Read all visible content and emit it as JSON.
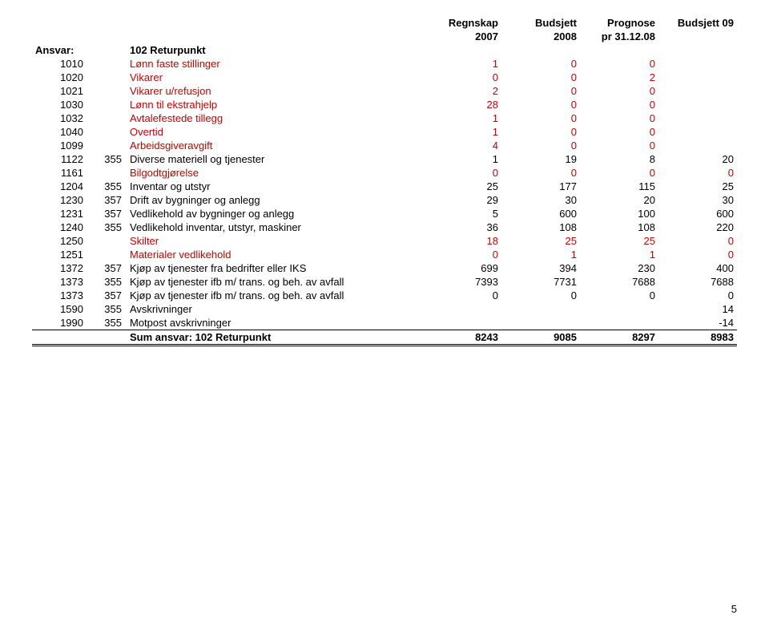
{
  "headers": {
    "regnskap_l1": "Regnskap",
    "regnskap_l2": "2007",
    "budsjett_l1": "Budsjett",
    "budsjett_l2": "2008",
    "prognose_l1": "Prognose",
    "prognose_l2": "pr 31.12.08",
    "budsjett09": "Budsjett 09"
  },
  "ansvar_label": "Ansvar:",
  "ansvar_value": "102 Returpunkt",
  "rows": [
    {
      "code": "1010",
      "sub": "",
      "desc": "Lønn faste stillinger",
      "r": "1",
      "b": "0",
      "p": "0",
      "b09": "",
      "red": true
    },
    {
      "code": "1020",
      "sub": "",
      "desc": "Vikarer",
      "r": "0",
      "b": "0",
      "p": "2",
      "b09": "",
      "red": true
    },
    {
      "code": "1021",
      "sub": "",
      "desc": "Vikarer u/refusjon",
      "r": "2",
      "b": "0",
      "p": "0",
      "b09": "",
      "red": true
    },
    {
      "code": "1030",
      "sub": "",
      "desc": "Lønn til ekstrahjelp",
      "r": "28",
      "b": "0",
      "p": "0",
      "b09": "",
      "red": true
    },
    {
      "code": "1032",
      "sub": "",
      "desc": "Avtalefestede tillegg",
      "r": "1",
      "b": "0",
      "p": "0",
      "b09": "",
      "red": true
    },
    {
      "code": "1040",
      "sub": "",
      "desc": "Overtid",
      "r": "1",
      "b": "0",
      "p": "0",
      "b09": "",
      "red": true
    },
    {
      "code": "1099",
      "sub": "",
      "desc": "Arbeidsgiveravgift",
      "r": "4",
      "b": "0",
      "p": "0",
      "b09": "",
      "red": true
    },
    {
      "code": "1122",
      "sub": "355",
      "desc": "Diverse materiell og tjenester",
      "r": "1",
      "b": "19",
      "p": "8",
      "b09": "20",
      "red": false
    },
    {
      "code": "1161",
      "sub": "",
      "desc": "Bilgodtgjørelse",
      "r": "0",
      "b": "0",
      "p": "0",
      "b09": "0",
      "red": true
    },
    {
      "code": "1204",
      "sub": "355",
      "desc": "Inventar og utstyr",
      "r": "25",
      "b": "177",
      "p": "115",
      "b09": "25",
      "red": false
    },
    {
      "code": "1230",
      "sub": "357",
      "desc": "Drift av bygninger og anlegg",
      "r": "29",
      "b": "30",
      "p": "20",
      "b09": "30",
      "red": false
    },
    {
      "code": "1231",
      "sub": "357",
      "desc": "Vedlikehold av bygninger og anlegg",
      "r": "5",
      "b": "600",
      "p": "100",
      "b09": "600",
      "red": false
    },
    {
      "code": "1240",
      "sub": "355",
      "desc": "Vedlikehold inventar, utstyr, maskiner",
      "r": "36",
      "b": "108",
      "p": "108",
      "b09": "220",
      "red": false
    },
    {
      "code": "1250",
      "sub": "",
      "desc": "Skilter",
      "r": "18",
      "b": "25",
      "p": "25",
      "b09": "0",
      "red": true
    },
    {
      "code": "1251",
      "sub": "",
      "desc": "Materialer vedlikehold",
      "r": "0",
      "b": "1",
      "p": "1",
      "b09": "0",
      "red": true
    },
    {
      "code": "1372",
      "sub": "357",
      "desc": "Kjøp av tjenester fra bedrifter eller IKS",
      "r": "699",
      "b": "394",
      "p": "230",
      "b09": "400",
      "red": false
    },
    {
      "code": "1373",
      "sub": "355",
      "desc": "Kjøp av tjenester ifb m/ trans. og beh. av avfall",
      "r": "7393",
      "b": "7731",
      "p": "7688",
      "b09": "7688",
      "red": false
    },
    {
      "code": "1373",
      "sub": "357",
      "desc": "Kjøp av tjenester ifb m/ trans. og beh. av avfall",
      "r": "0",
      "b": "0",
      "p": "0",
      "b09": "0",
      "red": false
    },
    {
      "code": "1590",
      "sub": "355",
      "desc": "Avskrivninger",
      "r": "",
      "b": "",
      "p": "",
      "b09": "14",
      "red": false
    },
    {
      "code": "1990",
      "sub": "355",
      "desc": "Motpost avskrivninger",
      "r": "",
      "b": "",
      "p": "",
      "b09": "-14",
      "red": false
    }
  ],
  "sum": {
    "label": "Sum ansvar: 102 Returpunkt",
    "r": "8243",
    "b": "9085",
    "p": "8297",
    "b09": "8983"
  },
  "page_number": "5"
}
